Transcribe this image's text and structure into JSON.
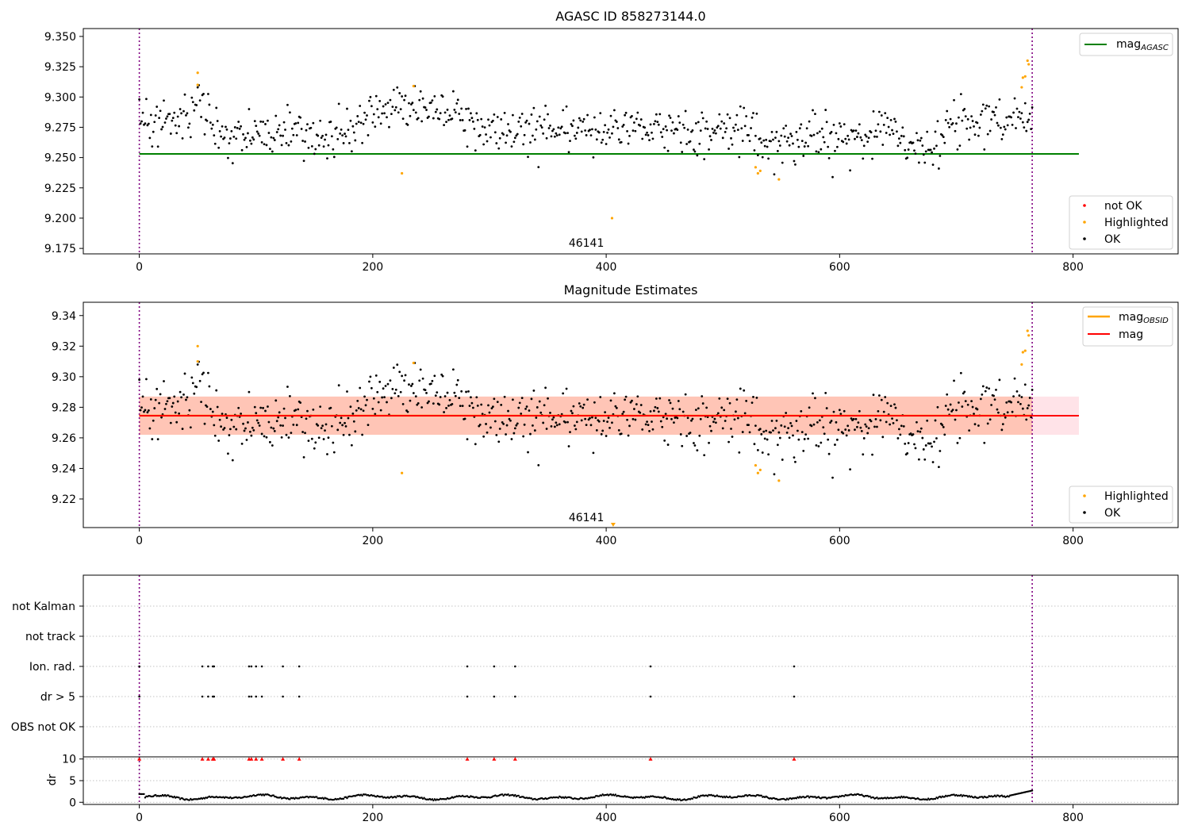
{
  "colors": {
    "ok": "#000000",
    "highlighted": "#ffa500",
    "not_ok": "#ff0000",
    "agasc_line": "#008000",
    "obsid_line": "#ffa500",
    "mag_line": "#ff0000",
    "band_obsid": "#ffa07a",
    "band_mag": "#ffc0cb",
    "vlines": "#800080"
  },
  "chart_data": [
    {
      "id": "top",
      "type": "scatter",
      "title": "AGASC ID 858273144.0",
      "xlim": [
        -48,
        890
      ],
      "ylim": [
        9.1705,
        9.3565
      ],
      "xticks": [
        0,
        200,
        400,
        600,
        800
      ],
      "yticks": [
        9.175,
        9.2,
        9.225,
        9.25,
        9.275,
        9.3,
        9.325,
        9.35
      ],
      "yticklabels": [
        "9.175",
        "9.200",
        "9.225",
        "9.250",
        "9.275",
        "9.300",
        "9.325",
        "9.350"
      ],
      "annotation": {
        "text": "46141",
        "x": 383,
        "y": 9.175
      },
      "vlines": [
        0,
        765
      ],
      "hline": {
        "y": 9.253,
        "x0": 0,
        "x1": 805,
        "name": "mag_AGASC"
      },
      "legend_upper": [
        {
          "label": "mag",
          "sub": "AGASC",
          "color_key": "agasc_line",
          "kind": "line"
        }
      ],
      "legend_lower": [
        {
          "label": "not OK",
          "color_key": "not_ok",
          "kind": "dot"
        },
        {
          "label": "Highlighted",
          "color_key": "highlighted",
          "kind": "dot"
        },
        {
          "label": "OK",
          "color_key": "ok",
          "kind": "dot"
        }
      ],
      "series": [
        {
          "name": "OK",
          "color_key": "ok",
          "points": "shared"
        },
        {
          "name": "Highlighted",
          "color_key": "highlighted",
          "points": "highlighted"
        },
        {
          "name": "not OK",
          "color_key": "not_ok",
          "points": []
        }
      ]
    },
    {
      "id": "mid",
      "type": "scatter",
      "title": "Magnitude Estimates",
      "xlim": [
        -48,
        890
      ],
      "ylim": [
        9.2013,
        9.3487
      ],
      "xticks": [
        0,
        200,
        400,
        600,
        800
      ],
      "yticks": [
        9.22,
        9.24,
        9.26,
        9.28,
        9.3,
        9.32,
        9.34
      ],
      "yticklabels": [
        "9.22",
        "9.24",
        "9.26",
        "9.28",
        "9.30",
        "9.32",
        "9.34"
      ],
      "annotation": {
        "text": "46141",
        "x": 383,
        "y": 9.203
      },
      "vlines": [
        0,
        765
      ],
      "mag_line": {
        "y": 9.2745,
        "x0": 0,
        "x1": 805
      },
      "mag_band": {
        "y0": 9.262,
        "y1": 9.287,
        "x0": 0,
        "x1": 805
      },
      "obsid_line": {
        "y": 9.2745,
        "x0": 0,
        "x1": 765
      },
      "obsid_band": {
        "y0": 9.262,
        "y1": 9.287,
        "x0": 0,
        "x1": 765
      },
      "offscale_marker": {
        "x": 406,
        "y": 9.2013
      },
      "legend_upper": [
        {
          "label": "mag",
          "sub": "OBSID",
          "color_key": "obsid_line",
          "kind": "line"
        },
        {
          "label": "mag",
          "sub": "",
          "color_key": "mag_line",
          "kind": "line"
        }
      ],
      "legend_lower": [
        {
          "label": "Highlighted",
          "color_key": "highlighted",
          "kind": "dot"
        },
        {
          "label": "OK",
          "color_key": "ok",
          "kind": "dot"
        }
      ]
    },
    {
      "id": "flags",
      "type": "scatter",
      "categories": [
        "OBS not OK",
        "dr > 5",
        "Ion. rad.",
        "not track",
        "not Kalman"
      ],
      "vlines": [
        0,
        765
      ],
      "flag_x": [
        0,
        54,
        59,
        63,
        64,
        94,
        96,
        100,
        105,
        123,
        137,
        281,
        304,
        322,
        438,
        561
      ],
      "flag_rows": [
        "dr > 5",
        "Ion. rad."
      ]
    },
    {
      "id": "dr",
      "type": "scatter",
      "ylabel": "dr",
      "ylim": [
        -0.5,
        10.5
      ],
      "yticks": [
        0,
        5,
        10
      ],
      "xlim": [
        -48,
        890
      ],
      "xticks": [
        0,
        200,
        400,
        600,
        800
      ],
      "vlines": [
        0,
        765
      ],
      "clipped_y": 10,
      "clipped_x": [
        0,
        54,
        59,
        63,
        64,
        94,
        96,
        100,
        105,
        123,
        137,
        281,
        304,
        322,
        438,
        561
      ],
      "series": [
        {
          "name": "dr",
          "color_key": "ok",
          "n": 766,
          "start": 0,
          "step": 1
        }
      ]
    }
  ],
  "highlighted": [
    [
      50,
      9.32
    ],
    [
      50,
      9.31
    ],
    [
      225,
      9.237
    ],
    [
      235,
      9.309
    ],
    [
      405,
      9.2
    ],
    [
      528,
      9.242
    ],
    [
      530,
      9.237
    ],
    [
      532,
      9.239
    ],
    [
      548,
      9.232
    ],
    [
      756,
      9.308
    ],
    [
      757,
      9.316
    ],
    [
      759,
      9.317
    ],
    [
      761,
      9.33
    ],
    [
      762,
      9.327
    ]
  ]
}
